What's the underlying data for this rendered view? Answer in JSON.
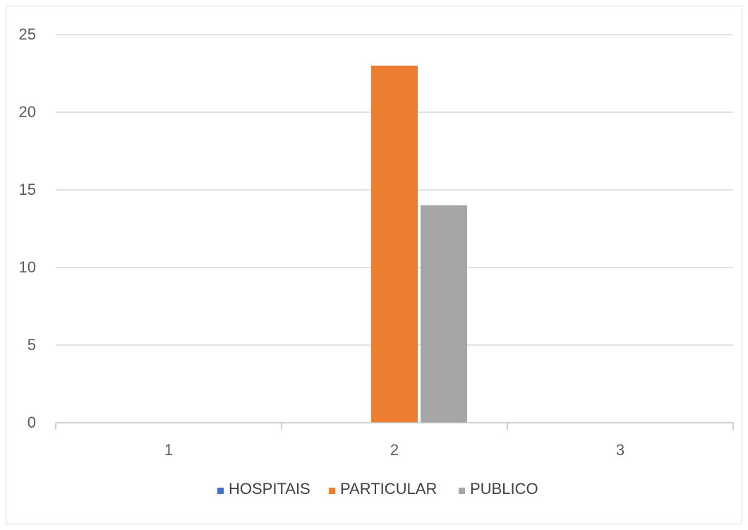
{
  "chart_data": {
    "type": "bar",
    "categories": [
      "1",
      "2",
      "3"
    ],
    "series": [
      {
        "name": "HOSPITAIS",
        "color": "#4472c4",
        "values": [
          0,
          0,
          0
        ]
      },
      {
        "name": "PARTICULAR",
        "color": "#ed7d31",
        "values": [
          0,
          23,
          0
        ]
      },
      {
        "name": "PUBLICO",
        "color": "#a5a5a5",
        "values": [
          0,
          14,
          0
        ]
      }
    ],
    "y_ticks": [
      "0",
      "5",
      "10",
      "15",
      "20",
      "25"
    ],
    "ylim": [
      0,
      25
    ],
    "grid": true,
    "legend_position": "bottom"
  }
}
